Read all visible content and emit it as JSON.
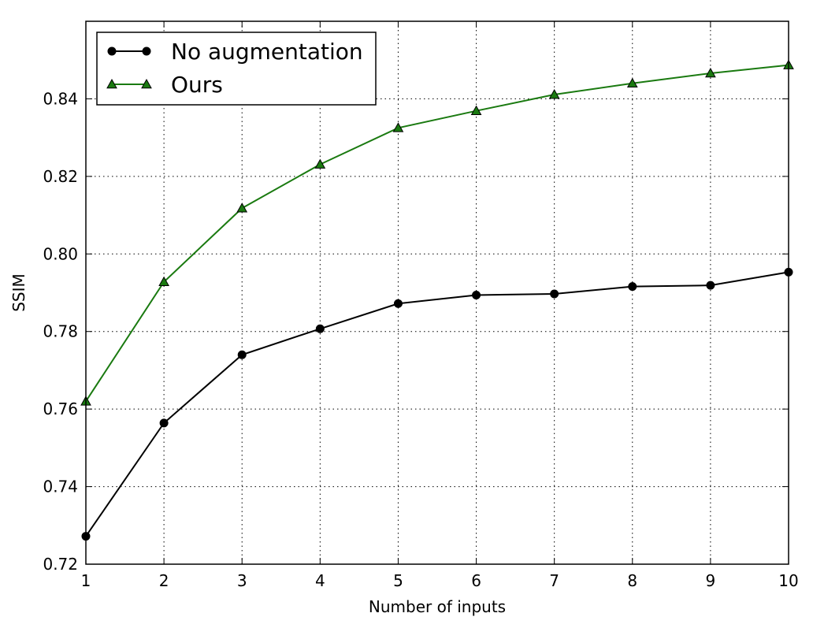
{
  "chart_data": {
    "type": "line",
    "title": "",
    "xlabel": "Number of inputs",
    "ylabel": "SSIM",
    "x": [
      1,
      2,
      3,
      4,
      5,
      6,
      7,
      8,
      9,
      10
    ],
    "xlim": [
      1,
      10
    ],
    "ylim": [
      0.72,
      0.86
    ],
    "xticks": [
      "1",
      "2",
      "3",
      "4",
      "5",
      "6",
      "7",
      "8",
      "9",
      "10"
    ],
    "yticks": [
      "0.72",
      "0.74",
      "0.76",
      "0.78",
      "0.80",
      "0.82",
      "0.84"
    ],
    "grid": true,
    "legend_position": "top-left",
    "series": [
      {
        "name": "No augmentation",
        "color": "#000000",
        "marker": "circle",
        "values": [
          0.7272,
          0.7564,
          0.774,
          0.7807,
          0.7872,
          0.7894,
          0.7897,
          0.7916,
          0.7919,
          0.7953
        ]
      },
      {
        "name": "Ours",
        "color": "#1a7a10",
        "marker": "triangle",
        "values": [
          0.762,
          0.7928,
          0.8118,
          0.8231,
          0.8325,
          0.8369,
          0.8411,
          0.844,
          0.8466,
          0.8487
        ]
      }
    ]
  }
}
